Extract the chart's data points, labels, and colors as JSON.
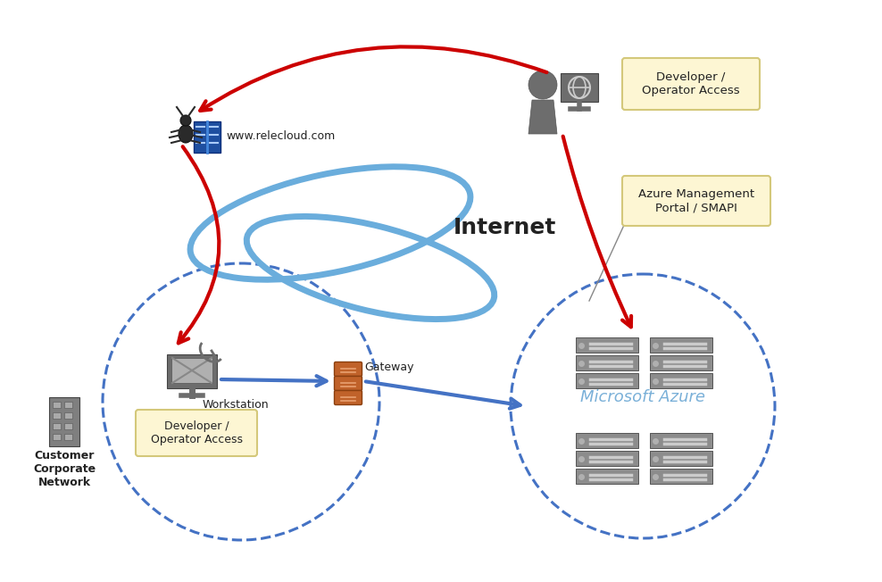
{
  "bg_color": "#ffffff",
  "internet_label": "Internet",
  "microsoft_azure_label": "Microsoft Azure",
  "customer_network_label": "Customer\nCorporate\nNetwork",
  "workstation_label": "Workstation",
  "gateway_label": "Gateway",
  "developer_access_label_top": "Developer /\nOperator Access",
  "developer_access_label_bottom": "Developer /\nOperator Access",
  "azure_mgmt_label": "Azure Management\nPortal / SMAPI",
  "relecloud_label": "www.relecloud.com",
  "arrow_red": "#cc0000",
  "arrow_blue": "#4472c4",
  "dashed_circle_color": "#4472c4",
  "internet_cloud_color": "#6aaddc",
  "box_fill": "#fdf6d3",
  "box_edge": "#d4c87a",
  "gateway_color": "#c0622a",
  "gateway_dark": "#8b4010",
  "server_color": "#8c8c8c",
  "server_light": "#b0b0b0",
  "server_line": "#cccccc",
  "building_color": "#7f7f7f",
  "icon_gray": "#6d6d6d",
  "bug_color": "#2a2a2a",
  "book_color": "#1e4fa0",
  "text_dark": "#222222",
  "azure_text": "#7ab0d8",
  "line_gray": "#888888"
}
